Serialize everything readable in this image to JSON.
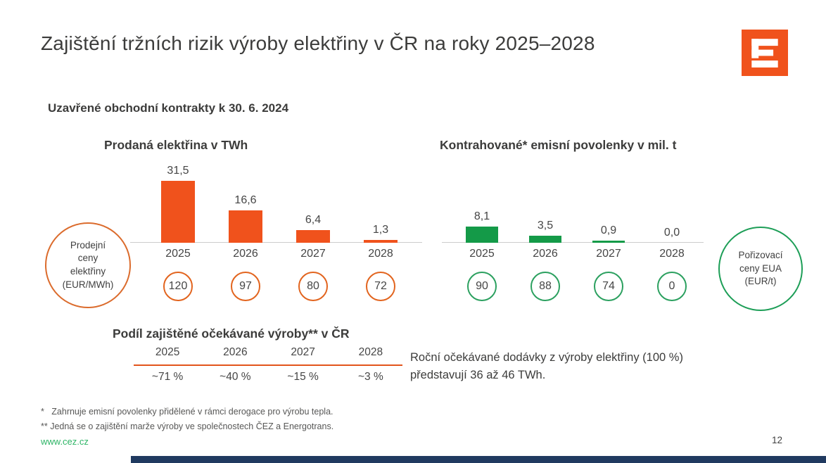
{
  "header": {
    "title": "Zajištění tržních rizik výroby elektřiny v ČR na roky 2025–2028",
    "logo": "cez-logo"
  },
  "subtitle": "Uzavřené obchodní kontrakty k 30. 6. 2024",
  "colors": {
    "brand_orange": "#f0521c",
    "green": "#149a48",
    "table_line_orange": "#e2551c",
    "website_green": "#2eb566",
    "bottom_bar_navy": "#203a60",
    "text_dark": "#3c3c3b"
  },
  "chart_data": [
    {
      "type": "bar",
      "title": "Prodaná elektřina v TWh",
      "categories": [
        "2025",
        "2026",
        "2027",
        "2028"
      ],
      "values": [
        31.5,
        16.6,
        6.4,
        1.3
      ],
      "value_labels": [
        "31,5",
        "16,6",
        "6,4",
        "1,3"
      ],
      "ylim": [
        0,
        35
      ],
      "bar_color": "#f0521c",
      "circle_border": "#e2641e",
      "price_circles": [
        "120",
        "97",
        "80",
        "72"
      ],
      "side_circle_lines": [
        "Prodejní",
        "ceny",
        "elektřiny",
        "(EUR/MWh)"
      ]
    },
    {
      "type": "bar",
      "title": "Kontrahované* emisní povolenky v mil. t",
      "categories": [
        "2025",
        "2026",
        "2027",
        "2028"
      ],
      "values": [
        8.1,
        3.5,
        0.9,
        0.0
      ],
      "value_labels": [
        "8,1",
        "3,5",
        "0,9",
        "0,0"
      ],
      "ylim": [
        0,
        10
      ],
      "bar_color": "#149a48",
      "circle_border": "#2ba05f",
      "price_circles": [
        "90",
        "88",
        "74",
        "0"
      ],
      "side_circle_lines": [
        "Pořizovací",
        "ceny EUA",
        "(EUR/t)"
      ]
    },
    {
      "type": "table",
      "title": "Podíl zajištěné očekávané výroby** v ČR",
      "categories": [
        "2025",
        "2026",
        "2027",
        "2028"
      ],
      "values": [
        "~71 %",
        "~40 %",
        "~15 %",
        "~3 %"
      ]
    }
  ],
  "annotation": {
    "line1": "Roční očekávané dodávky z výroby elektřiny (100 %)",
    "line2": "představují 36 až 46 TWh."
  },
  "footnotes": [
    "*   Zahrnuje emisní povolenky přidělené v rámci derogace pro výrobu tepla.",
    "** Jedná se o zajištění marže výroby ve společnostech ČEZ a Energotrans."
  ],
  "footer": {
    "website": "www.cez.cz",
    "page_number": "12"
  }
}
